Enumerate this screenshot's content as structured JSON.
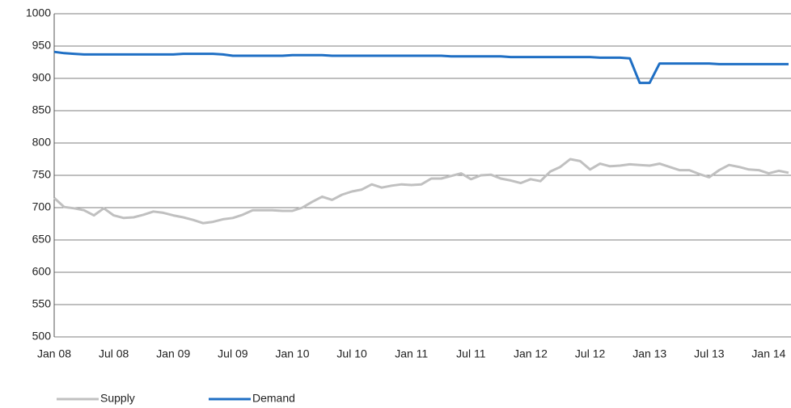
{
  "chart_data": {
    "type": "line",
    "categories": [
      "Jan 08",
      null,
      null,
      null,
      null,
      null,
      "Jul 08",
      null,
      null,
      null,
      null,
      null,
      "Jan 09",
      null,
      null,
      null,
      null,
      null,
      "Jul 09",
      null,
      null,
      null,
      null,
      null,
      "Jan 10",
      null,
      null,
      null,
      null,
      null,
      "Jul 10",
      null,
      null,
      null,
      null,
      null,
      "Jan 11",
      null,
      null,
      null,
      null,
      null,
      "Jul 11",
      null,
      null,
      null,
      null,
      null,
      "Jan 12",
      null,
      null,
      null,
      null,
      null,
      "Jul 12",
      null,
      null,
      null,
      null,
      null,
      "Jan 13",
      null,
      null,
      null,
      null,
      null,
      "Jul 13",
      null,
      null,
      null,
      null,
      null,
      "Jan 14",
      null,
      null
    ],
    "series": [
      {
        "name": "Supply",
        "color": "#c0c0c0",
        "values": [
          715,
          701,
          699,
          696,
          688,
          699,
          688,
          684,
          685,
          689,
          694,
          692,
          688,
          685,
          681,
          676,
          678,
          682,
          684,
          689,
          696,
          696,
          696,
          695,
          695,
          700,
          709,
          717,
          712,
          720,
          725,
          728,
          736,
          731,
          734,
          736,
          735,
          736,
          745,
          745,
          749,
          753,
          744,
          750,
          751,
          745,
          742,
          738,
          744,
          741,
          756,
          763,
          775,
          772,
          759,
          768,
          764,
          765,
          767,
          766,
          765,
          768,
          763,
          758,
          758,
          752,
          747,
          758,
          766,
          763,
          759,
          758,
          753,
          757,
          754
        ]
      },
      {
        "name": "Demand",
        "color": "#1f6fc4",
        "values": [
          941,
          939,
          938,
          937,
          937,
          937,
          937,
          937,
          937,
          937,
          937,
          937,
          937,
          938,
          938,
          938,
          938,
          937,
          935,
          935,
          935,
          935,
          935,
          935,
          936,
          936,
          936,
          936,
          935,
          935,
          935,
          935,
          935,
          935,
          935,
          935,
          935,
          935,
          935,
          935,
          934,
          934,
          934,
          934,
          934,
          934,
          933,
          933,
          933,
          933,
          933,
          933,
          933,
          933,
          933,
          932,
          932,
          932,
          931,
          893,
          893,
          923,
          923,
          923,
          923,
          923,
          923,
          922,
          922,
          922,
          922,
          922,
          922,
          922,
          922
        ]
      }
    ],
    "ylim": [
      500,
      1000
    ],
    "yticks": [
      500,
      550,
      600,
      650,
      700,
      750,
      800,
      850,
      900,
      950,
      1000
    ],
    "grid": true,
    "legend": "bottom"
  }
}
